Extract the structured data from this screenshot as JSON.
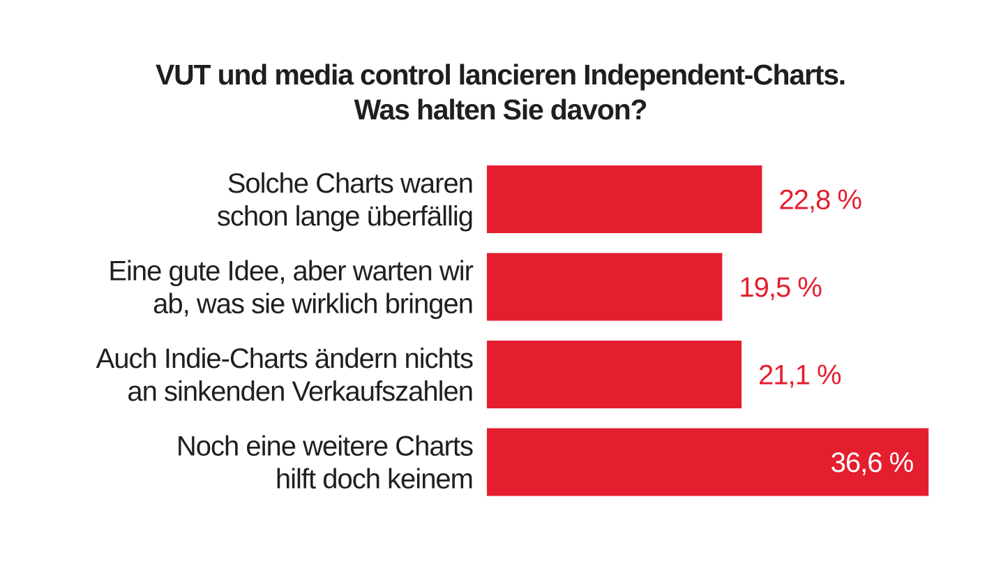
{
  "chart_data": {
    "type": "bar",
    "orientation": "horizontal",
    "title_lines": [
      "VUT und media control lancieren Independent-Charts.",
      "Was halten Sie davon?"
    ],
    "categories": [
      [
        "Solche Charts waren",
        "schon lange überfällig"
      ],
      [
        "Eine gute Idee, aber warten wir",
        "ab, was sie wirklich bringen"
      ],
      [
        "Auch Indie-Charts ändern nichts",
        "an sinkenden Verkaufszahlen"
      ],
      [
        "Noch eine weitere Charts",
        "hilft doch keinem"
      ]
    ],
    "values": [
      22.8,
      19.5,
      21.1,
      36.6
    ],
    "value_labels": [
      "22,8 %",
      "19,5 %",
      "21,1 %",
      "36,6 %"
    ],
    "bar_color": "#e41e2f",
    "label_color_outside": "#e41e2f",
    "label_color_inside": "#ffffff",
    "grid": false,
    "legend": "none"
  }
}
